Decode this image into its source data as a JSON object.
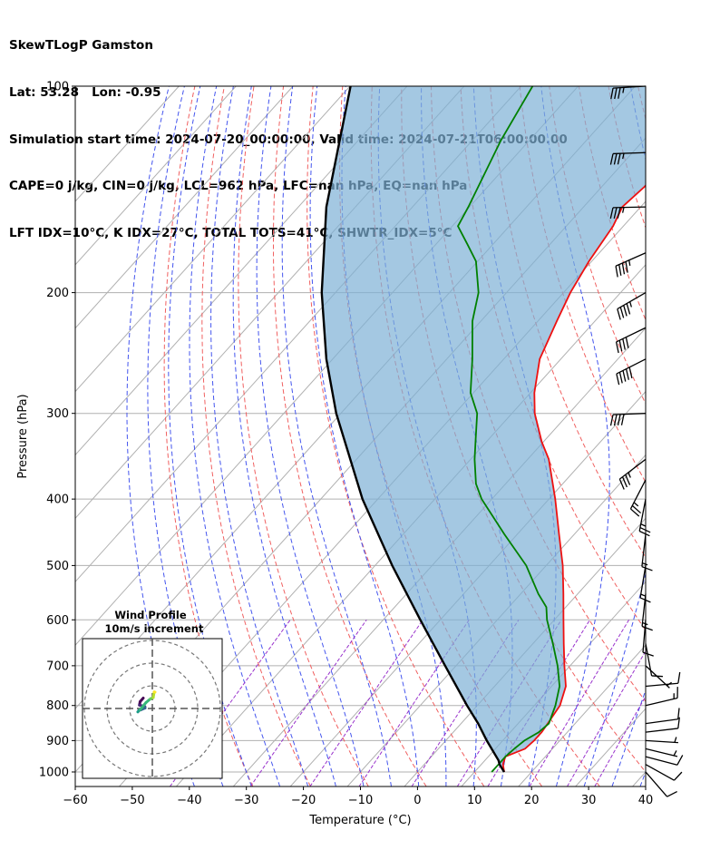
{
  "header": {
    "line1": "SkewTLogP Gamston",
    "line2": "Lat: 53.28   Lon: -0.95",
    "line3": "Simulation start time: 2024-07-20_00:00:00, Valid time: 2024-07-21T06:00:00.00",
    "line4": "CAPE=0 j/kg, CIN=0 j/kg, LCL=962 hPa, LFC=nan hPa, EQ=nan hPa",
    "line5": "LFT IDX=10°C, K IDX=27°C, TOTAL TOTS=41°C, SHWTR_IDX=5°C"
  },
  "inset": {
    "title": "Wind Profile",
    "subtitle": "10m/s increment"
  },
  "chart_data": {
    "type": "line",
    "chart_kind": "skew-T log-P diagram",
    "xlabel": "Temperature (°C)",
    "ylabel": "Pressure (hPa)",
    "xlim": [
      -60,
      40
    ],
    "ylim": [
      1050,
      100
    ],
    "y_scale": "log",
    "x_ticks": [
      -60,
      -50,
      -40,
      -30,
      -20,
      -10,
      0,
      10,
      20,
      30,
      40
    ],
    "x_tick_labels": [
      "−60",
      "−50",
      "−40",
      "−30",
      "−20",
      "−10",
      "0",
      "10",
      "20",
      "30",
      "40"
    ],
    "y_ticks": [
      1000,
      900,
      800,
      700,
      600,
      500,
      400,
      300,
      200,
      100
    ],
    "y_tick_labels": [
      "1000",
      "900",
      "800",
      "700",
      "600",
      "500",
      "400",
      "300",
      "200",
      "100"
    ],
    "grid": true,
    "colors": {
      "temperature": "#ee1111",
      "dewpoint": "#008000",
      "parcel": "#000000",
      "cape_fill": "#7eb0d5",
      "dry_adiabat": "#f06060",
      "moist_adiabat": "#4455ee",
      "mixing_ratio": "#9933cc",
      "isotherm_grid": "#b0b0b0",
      "wind_barb": "#000000"
    },
    "series": [
      {
        "name": "Temperature",
        "pressure": [
          1000,
          975,
          950,
          925,
          900,
          875,
          850,
          800,
          750,
          700,
          650,
          600,
          550,
          500,
          450,
          400,
          350,
          330,
          300,
          280,
          250,
          220,
          200,
          180,
          160,
          150,
          140,
          130,
          120,
          110,
          100
        ],
        "values": [
          15.2,
          13.8,
          13.0,
          15.2,
          15.5,
          15.5,
          15.2,
          14.5,
          12.5,
          9.0,
          5.4,
          1.6,
          -2.5,
          -7.1,
          -12.7,
          -18.9,
          -26.3,
          -30.3,
          -36.0,
          -39.3,
          -43.7,
          -46.7,
          -48.8,
          -50.5,
          -51.8,
          -53.2,
          -52.5,
          -52.8,
          -54.9,
          -54.9,
          -56.8
        ]
      },
      {
        "name": "Dewpoint",
        "pressure": [
          1000,
          975,
          950,
          925,
          900,
          875,
          850,
          800,
          750,
          700,
          650,
          600,
          575,
          550,
          500,
          450,
          400,
          380,
          350,
          330,
          300,
          280,
          250,
          220,
          200,
          180,
          170,
          160,
          150,
          120,
          100
        ],
        "values": [
          13.0,
          13.0,
          13.0,
          13.3,
          13.8,
          15.0,
          15.4,
          13.7,
          11.4,
          7.8,
          3.5,
          -1.3,
          -3.4,
          -6.9,
          -13.5,
          -22.3,
          -31.8,
          -35.2,
          -39.3,
          -41.9,
          -46.1,
          -50.5,
          -55.5,
          -61.5,
          -64.9,
          -70.3,
          -74.5,
          -79.0,
          -80.2,
          -85.0,
          -88.0
        ]
      },
      {
        "name": "Parcel",
        "pressure": [
          1000,
          975,
          962,
          900,
          850,
          800,
          700,
          600,
          500,
          400,
          300,
          250,
          200,
          150,
          100
        ],
        "values": [
          15.2,
          13.2,
          12.4,
          7.2,
          3.0,
          -1.8,
          -11.9,
          -23.5,
          -37.0,
          -52.7,
          -70.8,
          -81.1,
          -92.4,
          -105.1,
          -119.9
        ]
      }
    ],
    "wind_profile": {
      "pressure": [
        1000,
        975,
        950,
        925,
        900,
        875,
        850,
        800,
        750,
        700,
        650,
        600,
        550,
        500,
        450,
        400,
        375,
        350,
        300,
        250,
        225,
        200,
        175,
        150,
        125,
        100
      ],
      "u": [
        -4.0,
        -5.4,
        -5.7,
        -3.3,
        -3.2,
        -5.1,
        -5.9,
        -6.4,
        -5.4,
        -2.8,
        -0.8,
        0.4,
        0.8,
        1.2,
        1.0,
        2.2,
        6.1,
        13.8,
        20.0,
        22.5,
        17.8,
        19.8,
        20.2,
        18.8,
        18.1,
        17.0
      ],
      "v": [
        4.6,
        3.0,
        1.5,
        0.8,
        0.2,
        -0.6,
        -0.8,
        -1.5,
        -0.5,
        2.6,
        4.3,
        4.8,
        7.3,
        7.2,
        8.7,
        11.4,
        11.8,
        10.5,
        0.8,
        11.4,
        8.6,
        11.4,
        8.9,
        0.4,
        0.6,
        1.0
      ]
    }
  }
}
